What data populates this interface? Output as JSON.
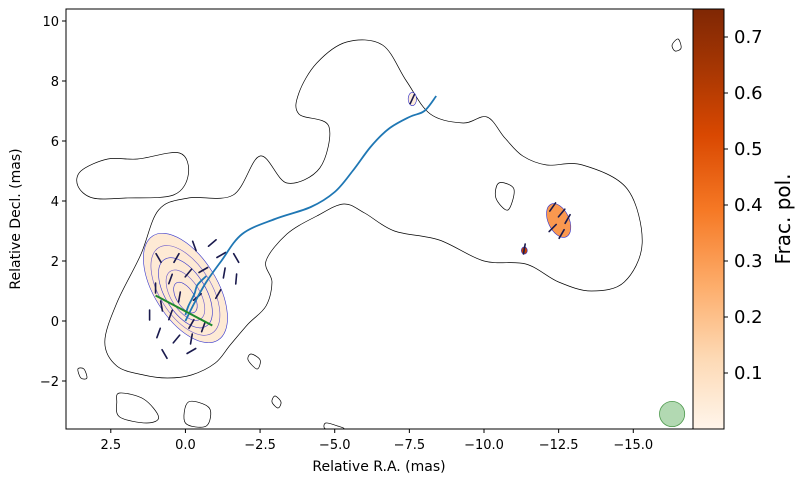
{
  "chart_data": {
    "type": "contour",
    "xlabel": "Relative R.A. (mas)",
    "ylabel": "Relative Decl. (mas)",
    "xlim": [
      4.0,
      -17.0
    ],
    "ylim": [
      -3.6,
      10.4
    ],
    "x_ticks": [
      2.5,
      0.0,
      -2.5,
      -5.0,
      -7.5,
      -10.0,
      -12.5,
      -15.0
    ],
    "x_tick_labels": [
      "2.5",
      "0.0",
      "−2.5",
      "−5.0",
      "−7.5",
      "−10.0",
      "−12.5",
      "−15.0"
    ],
    "y_ticks": [
      -2,
      0,
      2,
      4,
      6,
      8,
      10
    ],
    "y_tick_labels": [
      "−2",
      "0",
      "2",
      "4",
      "6",
      "8",
      "10"
    ],
    "colorbar": {
      "label": "Frac. pol.",
      "range": [
        0.0,
        0.75
      ],
      "ticks": [
        0.1,
        0.2,
        0.3,
        0.4,
        0.5,
        0.6,
        0.7
      ],
      "tick_labels": [
        "0.1",
        "0.2",
        "0.3",
        "0.4",
        "0.5",
        "0.6",
        "0.7"
      ],
      "colormap": "Oranges",
      "colors": [
        "#fff5eb",
        "#fdd9b4",
        "#fdad6b",
        "#f67925",
        "#d94801",
        "#a63603",
        "#7f2704"
      ]
    },
    "total_intensity_outer_contour": [
      [
        1.4,
        -1.8
      ],
      [
        0.6,
        -1.9
      ],
      [
        -0.2,
        -1.8
      ],
      [
        -1.0,
        -1.4
      ],
      [
        -1.5,
        -0.8
      ],
      [
        -2.1,
        -0.1
      ],
      [
        -2.7,
        0.5
      ],
      [
        -2.9,
        1.3
      ],
      [
        -2.7,
        2.0
      ],
      [
        -3.4,
        2.9
      ],
      [
        -4.4,
        3.5
      ],
      [
        -5.3,
        3.9
      ],
      [
        -6.0,
        3.6
      ],
      [
        -7.0,
        3.0
      ],
      [
        -8.5,
        2.7
      ],
      [
        -10.0,
        2.0
      ],
      [
        -11.4,
        1.9
      ],
      [
        -12.5,
        1.3
      ],
      [
        -13.6,
        1.0
      ],
      [
        -14.7,
        1.3
      ],
      [
        -15.3,
        2.6
      ],
      [
        -14.8,
        4.4
      ],
      [
        -13.3,
        5.2
      ],
      [
        -12.1,
        5.2
      ],
      [
        -11.3,
        5.5
      ],
      [
        -10.7,
        6.1
      ],
      [
        -10.1,
        6.8
      ],
      [
        -9.3,
        6.6
      ],
      [
        -8.2,
        6.9
      ],
      [
        -7.4,
        8.0
      ],
      [
        -6.6,
        9.2
      ],
      [
        -5.4,
        9.3
      ],
      [
        -4.4,
        8.6
      ],
      [
        -3.8,
        7.6
      ],
      [
        -3.8,
        6.9
      ],
      [
        -4.8,
        6.5
      ],
      [
        -4.5,
        5.1
      ],
      [
        -3.4,
        4.6
      ],
      [
        -2.5,
        5.5
      ],
      [
        -1.6,
        4.2
      ],
      [
        -0.1,
        4.1
      ],
      [
        0.9,
        3.7
      ],
      [
        1.5,
        2.2
      ],
      [
        2.3,
        0.6
      ],
      [
        2.7,
        -0.7
      ],
      [
        2.3,
        -1.5
      ]
    ],
    "total_intensity_islands": [
      [
        [
          3.5,
          5.0
        ],
        [
          2.6,
          5.4
        ],
        [
          1.6,
          5.4
        ],
        [
          0.2,
          5.6
        ],
        [
          -0.1,
          4.9
        ],
        [
          0.4,
          4.2
        ],
        [
          2.0,
          4.1
        ],
        [
          3.1,
          4.1
        ],
        [
          3.6,
          4.5
        ]
      ],
      [
        [
          -10.5,
          4.6
        ],
        [
          -11.0,
          4.4
        ],
        [
          -10.8,
          3.7
        ],
        [
          -10.4,
          4.1
        ]
      ],
      [
        [
          -16.4,
          9.0
        ],
        [
          -16.6,
          9.1
        ],
        [
          -16.5,
          9.4
        ],
        [
          -16.3,
          9.2
        ]
      ],
      [
        [
          3.4,
          -1.6
        ],
        [
          3.3,
          -1.9
        ],
        [
          3.5,
          -1.9
        ],
        [
          3.6,
          -1.6
        ]
      ],
      [
        [
          2.2,
          -2.4
        ],
        [
          1.4,
          -2.6
        ],
        [
          0.9,
          -3.2
        ],
        [
          1.3,
          -3.4
        ],
        [
          2.2,
          -3.2
        ],
        [
          2.3,
          -2.7
        ]
      ],
      [
        [
          -0.1,
          -2.7
        ],
        [
          -0.8,
          -2.9
        ],
        [
          -0.7,
          -3.5
        ],
        [
          0.0,
          -3.4
        ]
      ],
      [
        [
          -2.2,
          -1.1
        ],
        [
          -2.5,
          -1.3
        ],
        [
          -2.4,
          -1.6
        ],
        [
          -2.1,
          -1.3
        ]
      ],
      [
        [
          -3.0,
          -2.5
        ],
        [
          -3.2,
          -2.7
        ],
        [
          -3.1,
          -2.9
        ],
        [
          -2.9,
          -2.7
        ]
      ],
      [
        [
          -4.7,
          -3.4
        ],
        [
          -5.1,
          -3.5
        ],
        [
          -5.3,
          -3.6
        ],
        [
          -4.7,
          -3.6
        ]
      ]
    ],
    "core_contour_levels": 5,
    "polarized_regions": [
      {
        "center": [
          0.0,
          1.1
        ],
        "semi_axes": [
          1.05,
          2.05
        ],
        "angle_deg": -32,
        "frac_pol": 0.05
      },
      {
        "center": [
          -12.5,
          3.35
        ],
        "semi_axes": [
          0.35,
          0.6
        ],
        "angle_deg": -25,
        "frac_pol": 0.3
      },
      {
        "center": [
          -7.6,
          7.4
        ],
        "semi_axes": [
          0.14,
          0.22
        ],
        "angle_deg": 0,
        "frac_pol": 0.04
      },
      {
        "center": [
          -11.35,
          2.35
        ],
        "semi_axes": [
          0.1,
          0.12
        ],
        "angle_deg": 0,
        "frac_pol": 0.55
      }
    ],
    "evpa_vectors": [
      [
        0.9,
        2.1,
        60
      ],
      [
        0.3,
        2.1,
        120
      ],
      [
        -0.3,
        2.5,
        70
      ],
      [
        -0.9,
        2.6,
        140
      ],
      [
        -1.2,
        2.2,
        150
      ],
      [
        -1.7,
        2.1,
        60
      ],
      [
        -1.7,
        1.4,
        95
      ],
      [
        1.0,
        1.1,
        90
      ],
      [
        0.5,
        1.4,
        110
      ],
      [
        -0.1,
        1.6,
        130
      ],
      [
        -0.6,
        1.7,
        150
      ],
      [
        -1.3,
        1.6,
        100
      ],
      [
        -1.1,
        0.9,
        120
      ],
      [
        -0.4,
        0.8,
        140
      ],
      [
        0.2,
        0.8,
        100
      ],
      [
        0.8,
        0.5,
        80
      ],
      [
        1.2,
        0.2,
        90
      ],
      [
        0.5,
        0.2,
        110
      ],
      [
        -0.2,
        -0.1,
        120
      ],
      [
        -0.6,
        -0.2,
        110
      ],
      [
        0.9,
        -0.4,
        110
      ],
      [
        0.3,
        -0.6,
        130
      ],
      [
        -0.2,
        -0.6,
        100
      ],
      [
        0.7,
        -1.1,
        60
      ],
      [
        -0.2,
        -1.0,
        150
      ],
      [
        -12.3,
        3.8,
        125
      ],
      [
        -12.6,
        3.6,
        130
      ],
      [
        -12.8,
        3.4,
        120
      ],
      [
        -12.3,
        3.1,
        135
      ],
      [
        -12.6,
        2.9,
        120
      ],
      [
        -7.6,
        7.4,
        115
      ],
      [
        -11.35,
        2.4,
        100
      ]
    ],
    "ridge_line": [
      [
        0.0,
        0.0
      ],
      [
        -0.3,
        0.6
      ],
      [
        -0.7,
        1.3
      ],
      [
        -1.2,
        2.0
      ],
      [
        -1.9,
        2.9
      ],
      [
        -3.0,
        3.4
      ],
      [
        -4.2,
        3.8
      ],
      [
        -5.0,
        4.3
      ],
      [
        -5.6,
        5.0
      ],
      [
        -6.2,
        5.8
      ],
      [
        -6.8,
        6.4
      ],
      [
        -7.5,
        6.8
      ],
      [
        -8.0,
        7.0
      ],
      [
        -8.4,
        7.5
      ]
    ],
    "core_ridge": [
      [
        0.0,
        0.2
      ],
      [
        -0.1,
        0.5
      ],
      [
        -0.3,
        0.9
      ],
      [
        -0.4,
        1.2
      ],
      [
        -0.7,
        1.5
      ]
    ],
    "green_line": [
      [
        1.0,
        0.85
      ],
      [
        -0.9,
        -0.15
      ]
    ],
    "beam": {
      "center": [
        -16.3,
        -3.1
      ],
      "radius": 0.42,
      "color": "#7fbf7f"
    },
    "colors": {
      "contour": "#000000",
      "polarized_contour": "#3333cc",
      "evpa": "#1a1a4d",
      "ridge": "#1f77b4",
      "green_line": "#1e8a2e"
    }
  }
}
